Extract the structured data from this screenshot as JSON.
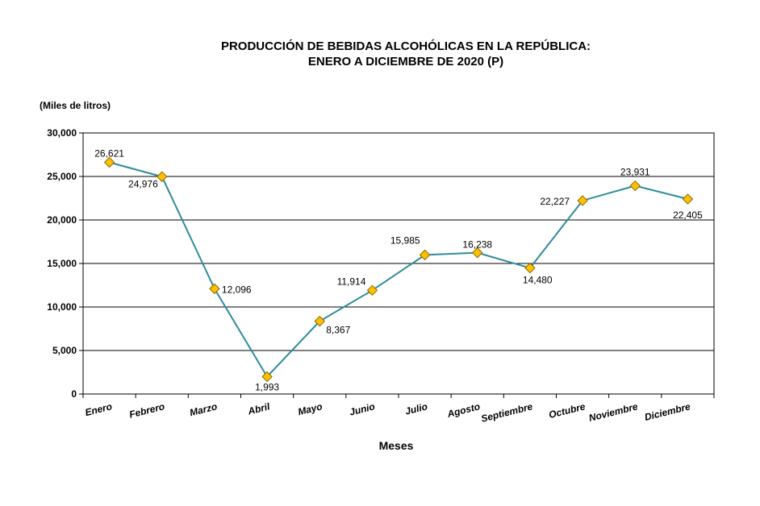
{
  "chart_data": {
    "type": "line",
    "title": "PRODUCCIÓN DE BEBIDAS ALCOHÓLICAS EN LA REPÚBLICA:",
    "subtitle": "ENERO A DICIEMBRE DE 2020 (P)",
    "ylabel": "(Miles de litros)",
    "xlabel": "Meses",
    "categories": [
      "Enero",
      "Febrero",
      "Marzo",
      "Abril",
      "Mayo",
      "Junio",
      "Julio",
      "Agosto",
      "Septiembre",
      "Octubre",
      "Noviembre",
      "Diciembre"
    ],
    "values": [
      26621,
      24976,
      12096,
      1993,
      8367,
      11914,
      15985,
      16238,
      14480,
      22227,
      23931,
      22405
    ],
    "data_labels": [
      "26,621",
      "24,976",
      "12,096",
      "1,993",
      "8,367",
      "11,914",
      "15,985",
      "16,238",
      "14,480",
      "22,227",
      "23,931",
      "22,405"
    ],
    "ylim": [
      0,
      30000
    ],
    "yticks": [
      0,
      5000,
      10000,
      15000,
      20000,
      25000,
      30000
    ],
    "ytick_labels": [
      "0",
      "5,000",
      "10,000",
      "15,000",
      "20,000",
      "25,000",
      "30,000"
    ],
    "grid": "horizontal",
    "legend": "none",
    "colors": {
      "line": "#2E8B9A",
      "marker_fill": "#FFC000",
      "marker_stroke": "#8B6A00",
      "grid": "#000000"
    }
  }
}
